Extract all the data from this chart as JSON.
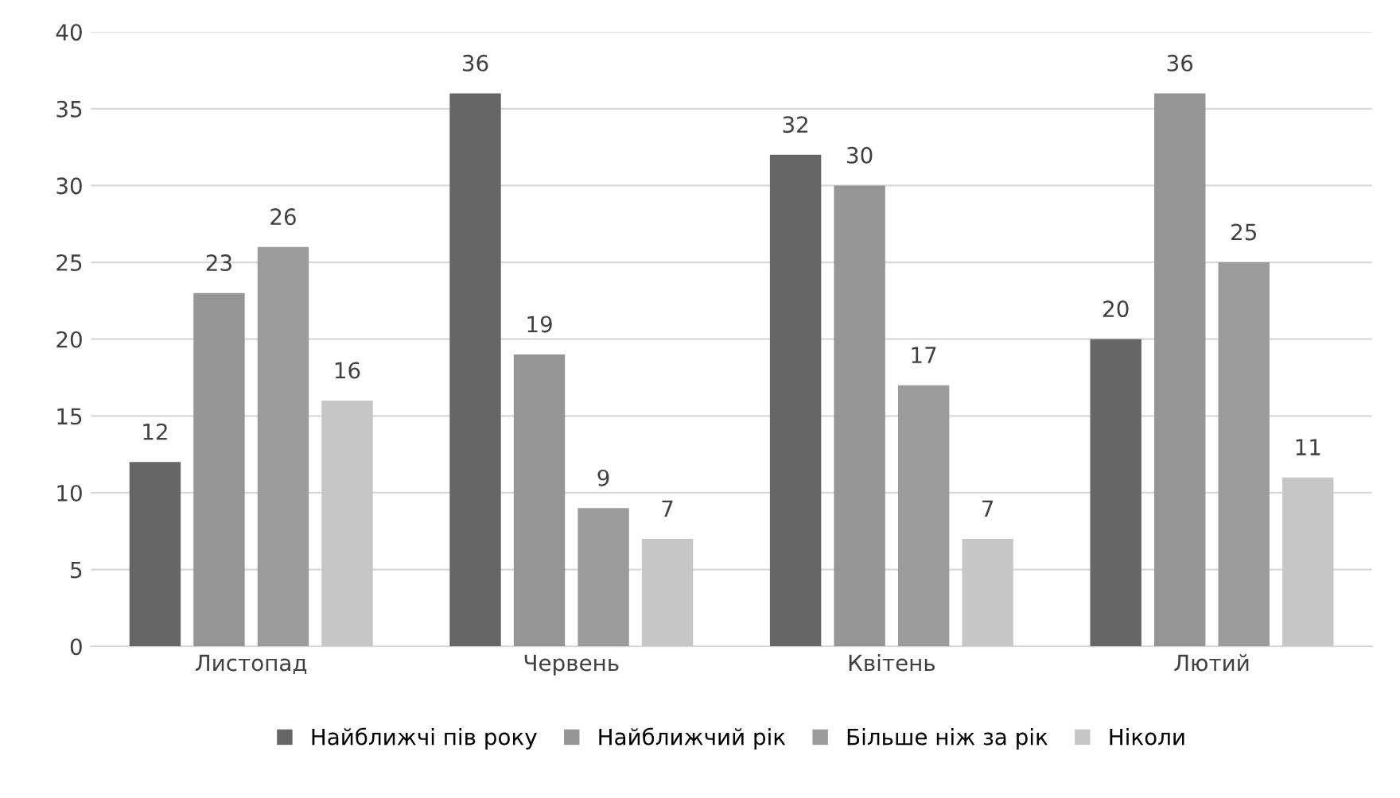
{
  "chart_data": {
    "type": "bar",
    "categories": [
      "Листопад",
      "Червень",
      "Квітень",
      "Лютий"
    ],
    "series": [
      {
        "name": "Найближчі пів року",
        "color": "#666666",
        "values": [
          12,
          36,
          32,
          20
        ]
      },
      {
        "name": "Найближчий рік",
        "color": "#959595",
        "values": [
          23,
          19,
          30,
          36
        ]
      },
      {
        "name": "Більше ніж за рік",
        "color": "#9b9b9b",
        "values": [
          26,
          9,
          17,
          25
        ]
      },
      {
        "name": "Ніколи",
        "color": "#c6c6c6",
        "values": [
          16,
          7,
          7,
          11
        ]
      }
    ],
    "ylim": [
      0,
      40
    ],
    "yticks": [
      0,
      5,
      10,
      15,
      20,
      25,
      30,
      35,
      40
    ],
    "grid": "y",
    "legend": "bottom",
    "data_labels": true
  }
}
